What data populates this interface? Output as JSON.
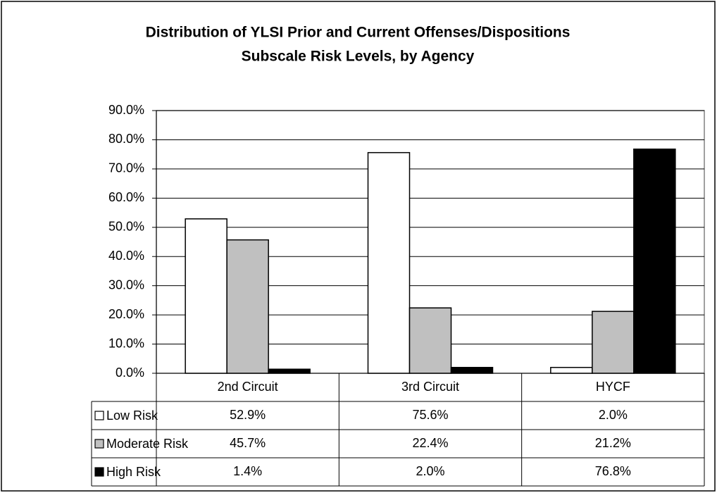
{
  "chart_data": {
    "type": "bar",
    "title": [
      "Distribution of YLSI Prior and Current Offenses/Dispositions",
      "Subscale Risk Levels, by Agency"
    ],
    "categories": [
      "2nd Circuit",
      "3rd Circuit",
      "HYCF"
    ],
    "series": [
      {
        "name": "Low Risk",
        "color": "#ffffff",
        "values": [
          52.9,
          75.6,
          2.0
        ],
        "value_labels": [
          "52.9%",
          "75.6%",
          "2.0%"
        ]
      },
      {
        "name": "Moderate Risk",
        "color": "#c0c0c0",
        "values": [
          45.7,
          22.4,
          21.2
        ],
        "value_labels": [
          "45.7%",
          "22.4%",
          "21.2%"
        ]
      },
      {
        "name": "High Risk",
        "color": "#000000",
        "values": [
          1.4,
          2.0,
          76.8
        ],
        "value_labels": [
          "1.4%",
          "2.0%",
          "76.8%"
        ]
      }
    ],
    "ylim": [
      0,
      90
    ],
    "yticks": [
      {
        "value": 0,
        "label": "0.0%"
      },
      {
        "value": 10,
        "label": "10.0%"
      },
      {
        "value": 20,
        "label": "20.0%"
      },
      {
        "value": 30,
        "label": "30.0%"
      },
      {
        "value": 40,
        "label": "40.0%"
      },
      {
        "value": 50,
        "label": "50.0%"
      },
      {
        "value": 60,
        "label": "60.0%"
      },
      {
        "value": 70,
        "label": "70.0%"
      },
      {
        "value": 80,
        "label": "80.0%"
      },
      {
        "value": 90,
        "label": "90.0%"
      }
    ],
    "grid": true
  }
}
